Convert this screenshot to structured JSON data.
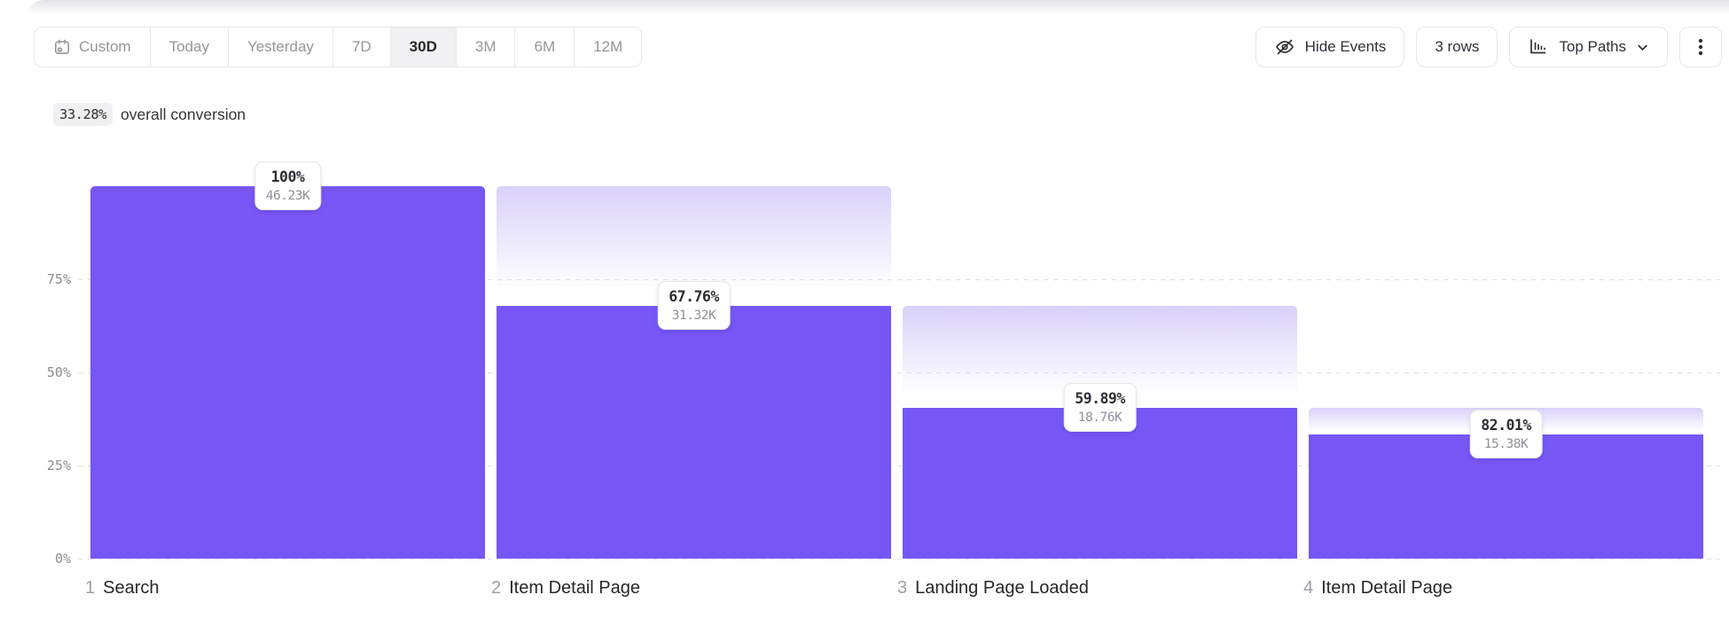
{
  "toolbar": {
    "date_ranges": [
      {
        "label": "Custom",
        "icon": "calendar-icon",
        "selected": false
      },
      {
        "label": "Today",
        "selected": false
      },
      {
        "label": "Yesterday",
        "selected": false
      },
      {
        "label": "7D",
        "selected": false
      },
      {
        "label": "30D",
        "selected": true
      },
      {
        "label": "3M",
        "selected": false
      },
      {
        "label": "6M",
        "selected": false
      },
      {
        "label": "12M",
        "selected": false
      }
    ],
    "hide_events_label": "Hide Events",
    "rows_label": "3 rows",
    "top_paths_label": "Top Paths",
    "icons": {
      "hide_events": "eye-off-icon",
      "top_paths": "bar-chart-icon",
      "top_paths_caret": "chevron-down-icon",
      "more": "kebab-icon",
      "custom": "calendar-icon"
    }
  },
  "summary": {
    "value": "33.28%",
    "label": "overall conversion"
  },
  "chart_data": {
    "type": "bar",
    "subtype": "funnel",
    "title": "",
    "categories": [
      "1 Search",
      "2 Item Detail Page",
      "3 Landing Page Loaded",
      "4 Item Detail Page"
    ],
    "y_ticks_pct": [
      0,
      25,
      50,
      75
    ],
    "ylim": [
      0,
      100
    ],
    "grid": "dashed-horizontal",
    "legend": "none",
    "steps": [
      {
        "step": 1,
        "name": "Search",
        "pct_label": "100%",
        "count_label": "46.23K",
        "pct_of_first": 100
      },
      {
        "step": 2,
        "name": "Item Detail Page",
        "pct_label": "67.76%",
        "count_label": "31.32K",
        "pct_of_first": 67.75
      },
      {
        "step": 3,
        "name": "Landing Page Loaded",
        "pct_label": "59.89%",
        "count_label": "18.76K",
        "pct_of_first": 40.58
      },
      {
        "step": 4,
        "name": "Item Detail Page",
        "pct_label": "82.01%",
        "count_label": "15.38K",
        "pct_of_first": 33.27
      }
    ],
    "colors": {
      "bar": "#7656F5",
      "gradient_top": "#D9D1F9",
      "grid": "#E0E0E5"
    }
  }
}
